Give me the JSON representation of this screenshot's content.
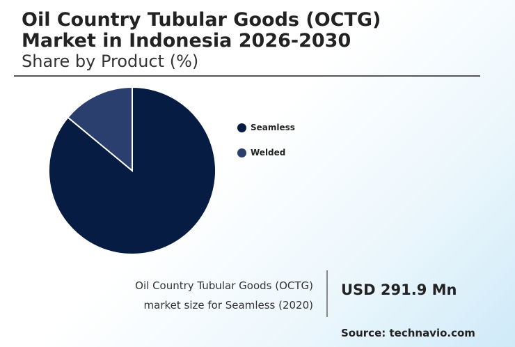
{
  "header": {
    "title": "Oil Country Tubular Goods (OCTG)\nMarket in Indonesia 2026-2030",
    "subtitle": "Share by Product (%)"
  },
  "chart_data": {
    "type": "pie",
    "title": "Share by Product (%)",
    "categories": [
      "Seamless",
      "Welded"
    ],
    "values": [
      86,
      14
    ],
    "colors": [
      "#071c42",
      "#2b3f6e"
    ],
    "legend_position": "right"
  },
  "legend": {
    "items": [
      {
        "label": "Seamless",
        "color": "#071c42"
      },
      {
        "label": "Welded",
        "color": "#2b3f6e"
      }
    ]
  },
  "footer": {
    "caption_line1": "Oil Country Tubular Goods (OCTG)",
    "caption_line2": "market size for Seamless (2020)",
    "metric": "USD 291.9 Mn",
    "source": "Source: technavio.com"
  }
}
